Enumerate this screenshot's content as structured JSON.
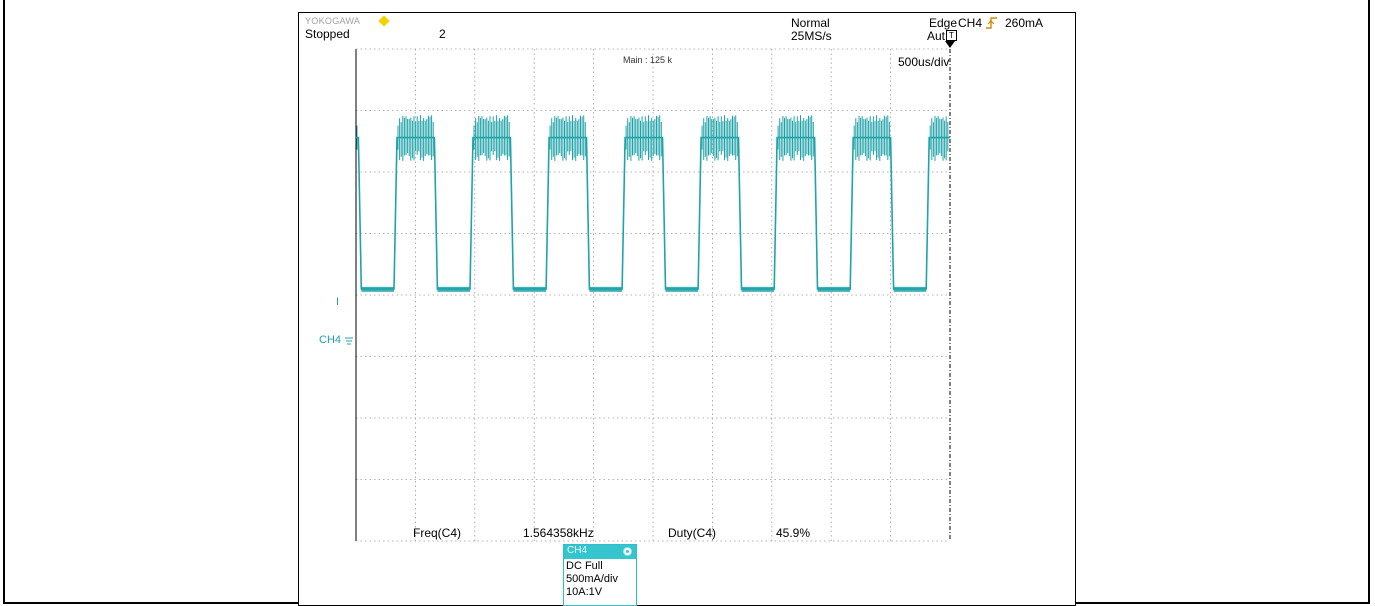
{
  "header": {
    "brand": "YOKOGAWA",
    "status": "Stopped",
    "record_count": "2",
    "acq_mode": "Normal",
    "sample_rate": "25MS/s",
    "trigger_type": "Edge",
    "trigger_source": "CH4",
    "trigger_level": "260mA",
    "trigger_mode": "Aut",
    "trigger_mark": "T"
  },
  "plot": {
    "main_label": "Main : 125 k",
    "time_div": "500us/div",
    "trace_color": "#1fa3a8",
    "grid_color": "#9a9a9a",
    "ch_marker_label": "CH4",
    "ground_marker_label": "I"
  },
  "measurements": [
    {
      "label": "Freq(C4)",
      "value": "1.564358kHz"
    },
    {
      "label": "Duty(C4)",
      "value": "45.9%"
    }
  ],
  "channel_panel": {
    "title": "CH4",
    "coupling": "DC Full",
    "scale": "500mA/div",
    "probe": "10A:1V"
  },
  "chart_data": {
    "type": "line",
    "title": "",
    "xlabel": "",
    "ylabel": "",
    "x_unit": "ms",
    "y_unit": "A",
    "x_range": [
      0,
      5
    ],
    "y_range": [
      -2.0,
      2.0
    ],
    "divisions": {
      "x": 10,
      "y": 8
    },
    "grid": true,
    "series": [
      {
        "points": [
          [
            0.0,
            1.28
          ],
          [
            0.02,
            1.28
          ],
          [
            0.045,
            0.05
          ],
          [
            0.32,
            0.05
          ],
          [
            0.345,
            1.28
          ],
          [
            0.66,
            1.28
          ],
          [
            0.685,
            0.05
          ],
          [
            0.96,
            0.05
          ],
          [
            0.985,
            1.28
          ],
          [
            1.3,
            1.28
          ],
          [
            1.325,
            0.05
          ],
          [
            1.6,
            0.05
          ],
          [
            1.625,
            1.28
          ],
          [
            1.94,
            1.28
          ],
          [
            1.965,
            0.05
          ],
          [
            2.24,
            0.05
          ],
          [
            2.265,
            1.28
          ],
          [
            2.58,
            1.28
          ],
          [
            2.605,
            0.05
          ],
          [
            2.88,
            0.05
          ],
          [
            2.905,
            1.28
          ],
          [
            3.22,
            1.28
          ],
          [
            3.245,
            0.05
          ],
          [
            3.52,
            0.05
          ],
          [
            3.545,
            1.28
          ],
          [
            3.86,
            1.28
          ],
          [
            3.885,
            0.05
          ],
          [
            4.16,
            0.05
          ],
          [
            4.185,
            1.28
          ],
          [
            4.5,
            1.28
          ],
          [
            4.525,
            0.05
          ],
          [
            4.8,
            0.05
          ],
          [
            4.825,
            1.28
          ],
          [
            5.0,
            1.28
          ]
        ]
      }
    ]
  }
}
